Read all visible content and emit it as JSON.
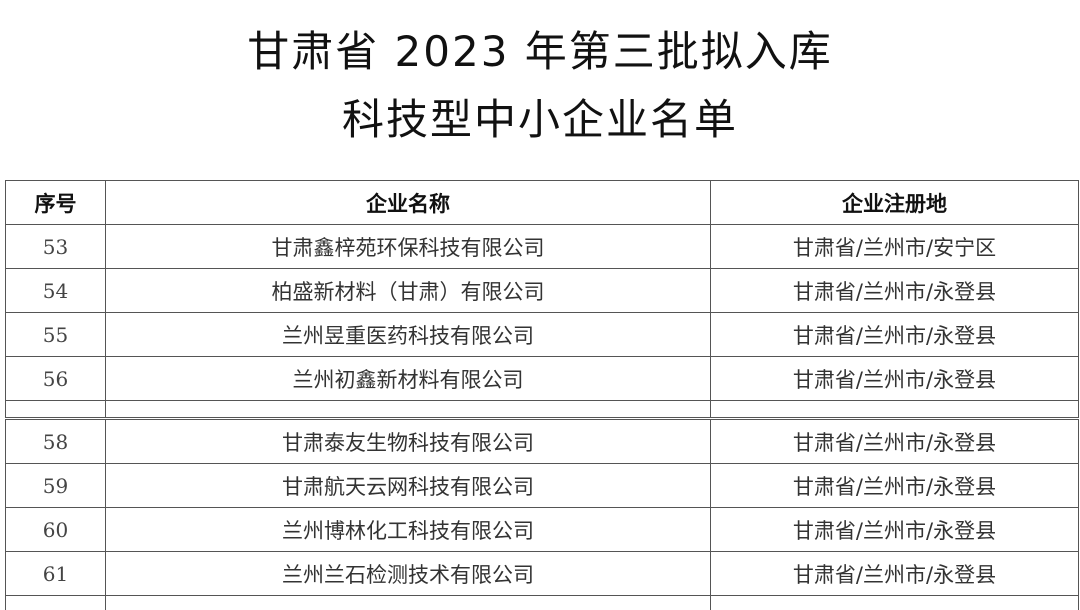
{
  "title_line1": "甘肃省 2023 年第三批拟入库",
  "title_line2": "科技型中小企业名单",
  "table": {
    "headers": [
      "序号",
      "企业名称",
      "企业注册地"
    ],
    "rows_top": [
      {
        "no": "53",
        "name": "甘肃鑫梓苑环保科技有限公司",
        "location": "甘肃省/兰州市/安宁区"
      },
      {
        "no": "54",
        "name": "柏盛新材料（甘肃）有限公司",
        "location": "甘肃省/兰州市/永登县"
      },
      {
        "no": "55",
        "name": "兰州昱重医药科技有限公司",
        "location": "甘肃省/兰州市/永登县"
      },
      {
        "no": "56",
        "name": "兰州初鑫新材料有限公司",
        "location": "甘肃省/兰州市/永登县"
      }
    ],
    "rows_bottom": [
      {
        "no": "58",
        "name": "甘肃泰友生物科技有限公司",
        "location": "甘肃省/兰州市/永登县"
      },
      {
        "no": "59",
        "name": "甘肃航天云网科技有限公司",
        "location": "甘肃省/兰州市/永登县"
      },
      {
        "no": "60",
        "name": "兰州博林化工科技有限公司",
        "location": "甘肃省/兰州市/永登县"
      },
      {
        "no": "61",
        "name": "兰州兰石检测技术有限公司",
        "location": "甘肃省/兰州市/永登县"
      }
    ]
  }
}
